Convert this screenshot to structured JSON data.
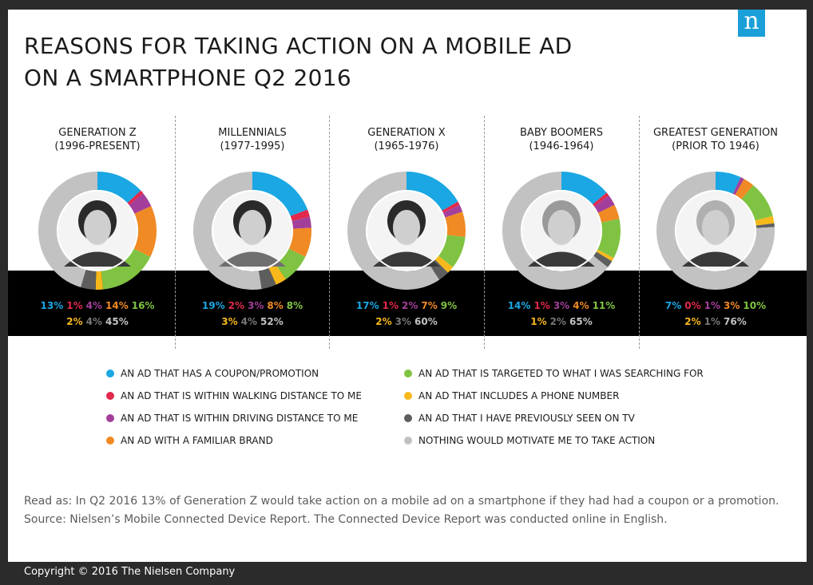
{
  "logo": "n",
  "title_line1": "REASONS FOR TAKING ACTION ON A MOBILE AD",
  "title_line2": "ON A SMARTPHONE Q2 2016",
  "colors": {
    "coupon": "#1aa7e3",
    "walking": "#e2284c",
    "driving": "#a33f9b",
    "brand": "#f08a24",
    "targeted": "#80c342",
    "phone": "#f7b81c",
    "tv": "#5e5e5e",
    "nothing": "#c2c2c2"
  },
  "chart_data": {
    "type": "pie",
    "variant": "donut",
    "title": "REASONS FOR TAKING ACTION ON A MOBILE AD ON A SMARTPHONE Q2 2016",
    "categories": [
      "AN AD THAT HAS A COUPON/PROMOTION",
      "AN AD THAT IS WITHIN WALKING DISTANCE TO ME",
      "AN AD THAT IS WITHIN DRIVING DISTANCE TO ME",
      "AN AD WITH A FAMILIAR BRAND",
      "AN AD THAT IS TARGETED TO WHAT I WAS SEARCHING FOR",
      "AN AD THAT INCLUDES A PHONE NUMBER",
      "AN AD THAT I HAVE PREVIOUSLY SEEN ON TV",
      "NOTHING WOULD MOTIVATE ME TO TAKE ACTION"
    ],
    "series_keys": [
      "coupon",
      "walking",
      "driving",
      "brand",
      "targeted",
      "phone",
      "tv",
      "nothing"
    ],
    "unit": "%",
    "series": [
      {
        "name_line1": "GENERATION Z",
        "name_line2": "(1996-PRESENT)",
        "values": [
          13,
          1,
          4,
          14,
          16,
          2,
          4,
          45
        ]
      },
      {
        "name_line1": "MILLENNIALS",
        "name_line2": "(1977-1995)",
        "values": [
          19,
          2,
          3,
          8,
          8,
          3,
          4,
          52
        ]
      },
      {
        "name_line1": "GENERATION X",
        "name_line2": "(1965-1976)",
        "values": [
          17,
          1,
          2,
          7,
          9,
          2,
          3,
          60
        ]
      },
      {
        "name_line1": "BABY BOOMERS",
        "name_line2": "(1946-1964)",
        "values": [
          14,
          1,
          3,
          4,
          11,
          1,
          2,
          65
        ]
      },
      {
        "name_line1": "GREATEST GENERATION",
        "name_line2": "(PRIOR TO 1946)",
        "values": [
          7,
          0,
          1,
          3,
          10,
          2,
          1,
          76
        ]
      }
    ]
  },
  "legend": {
    "left": [
      {
        "key": "coupon",
        "label": "AN AD THAT HAS A COUPON/PROMOTION"
      },
      {
        "key": "walking",
        "label": "AN AD THAT IS WITHIN WALKING DISTANCE TO ME"
      },
      {
        "key": "driving",
        "label": "AN AD THAT IS WITHIN DRIVING DISTANCE TO ME"
      },
      {
        "key": "brand",
        "label": "AN AD WITH A FAMILIAR BRAND"
      }
    ],
    "right": [
      {
        "key": "targeted",
        "label": "AN AD THAT IS TARGETED TO WHAT I WAS SEARCHING FOR"
      },
      {
        "key": "phone",
        "label": "AN AD THAT INCLUDES A PHONE NUMBER"
      },
      {
        "key": "tv",
        "label": "AN AD THAT I HAVE PREVIOUSLY SEEN ON TV"
      },
      {
        "key": "nothing",
        "label": "NOTHING WOULD MOTIVATE ME TO TAKE ACTION"
      }
    ]
  },
  "note_line1": "Read as: In Q2 2016 13% of Generation Z would take action on a mobile ad on a smartphone if they had had a coupon or a promotion.",
  "note_line2": "Source: Nielsen’s Mobile Connected Device Report. The Connected Device Report was conducted online in English.",
  "copyright": "Copyright © 2016 The Nielsen Company"
}
